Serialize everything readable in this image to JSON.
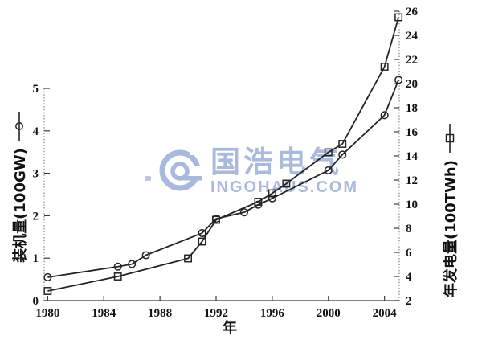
{
  "watermark": {
    "title": "国浩电气",
    "subtitle": "INGOHAUS.COM",
    "color": "#a6b7dd"
  },
  "chart_data": {
    "type": "line",
    "title": "",
    "xlabel": "年",
    "x_range": [
      1979.75,
      2005.05
    ],
    "x_ticks": [
      1980,
      1984,
      1988,
      1992,
      1996,
      2000,
      2004
    ],
    "grid": false,
    "legend_position": "rotated-axis-labels",
    "line_color": "#242424",
    "axes": {
      "left": {
        "label": "装机量(100GW)",
        "range": [
          0,
          5
        ],
        "ticks": [
          0,
          1,
          2,
          3,
          4,
          5
        ],
        "legend_marker": "circle"
      },
      "right": {
        "label": "年发电量(100TWh)",
        "range": [
          2,
          26
        ],
        "ticks": [
          2,
          4,
          6,
          8,
          10,
          12,
          14,
          16,
          18,
          20,
          22,
          24,
          26
        ],
        "legend_marker": "square"
      }
    },
    "series": [
      {
        "name": "装机量(100GW)",
        "axis": "left",
        "marker": "circle",
        "points": [
          [
            1980,
            0.55
          ],
          [
            1985,
            0.8
          ],
          [
            1986,
            0.86
          ],
          [
            1987,
            1.07
          ],
          [
            1991,
            1.59
          ],
          [
            1992,
            1.93
          ],
          [
            1994,
            2.08
          ],
          [
            1995,
            2.26
          ],
          [
            1996,
            2.41
          ],
          [
            2000,
            3.07
          ],
          [
            2001,
            3.44
          ],
          [
            2004,
            4.37
          ],
          [
            2005,
            5.2
          ]
        ]
      },
      {
        "name": "年发电量(100TWh)",
        "axis": "right",
        "marker": "square",
        "points": [
          [
            1980,
            2.8
          ],
          [
            1985,
            4.0
          ],
          [
            1990,
            5.5
          ],
          [
            1991,
            6.9
          ],
          [
            1992,
            8.7
          ],
          [
            1995,
            10.2
          ],
          [
            1996,
            10.9
          ],
          [
            1997,
            11.7
          ],
          [
            2000,
            14.3
          ],
          [
            2001,
            15.0
          ],
          [
            2004,
            21.4
          ],
          [
            2005,
            25.5
          ]
        ]
      }
    ]
  }
}
